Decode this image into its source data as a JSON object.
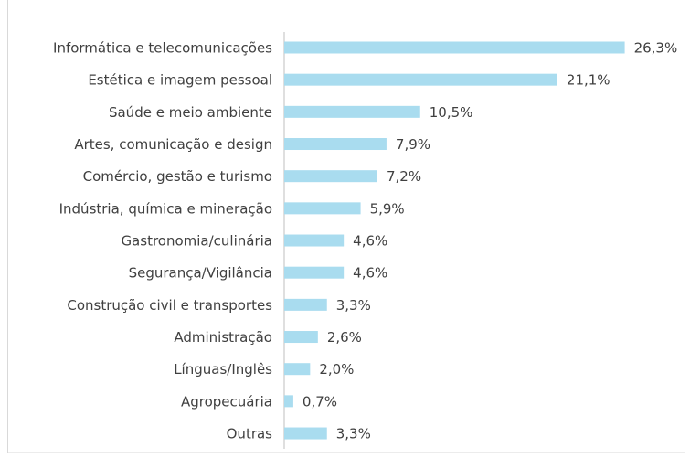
{
  "chart_data": {
    "type": "bar",
    "orientation": "horizontal",
    "categories": [
      "Informática e telecomunicações",
      "Estética e imagem pessoal",
      "Saúde e meio ambiente",
      "Artes, comunicação e design",
      "Comércio, gestão e turismo",
      "Indústria, química e mineração",
      "Gastronomia/culinária",
      "Segurança/Vigilância",
      "Construção civil e transportes",
      "Administração",
      "Línguas/Inglês",
      "Agropecuária",
      "Outras"
    ],
    "values": [
      26.3,
      21.1,
      10.5,
      7.9,
      7.2,
      5.9,
      4.6,
      4.6,
      3.3,
      2.6,
      2.0,
      0.7,
      3.3
    ],
    "value_labels": [
      "26,3%",
      "21,1%",
      "10,5%",
      "7,9%",
      "7,2%",
      "5,9%",
      "4,6%",
      "4,6%",
      "3,3%",
      "2,6%",
      "2,0%",
      "0,7%",
      "3,3%"
    ],
    "color": "#a9dcef",
    "xlim": [
      0,
      30
    ]
  }
}
